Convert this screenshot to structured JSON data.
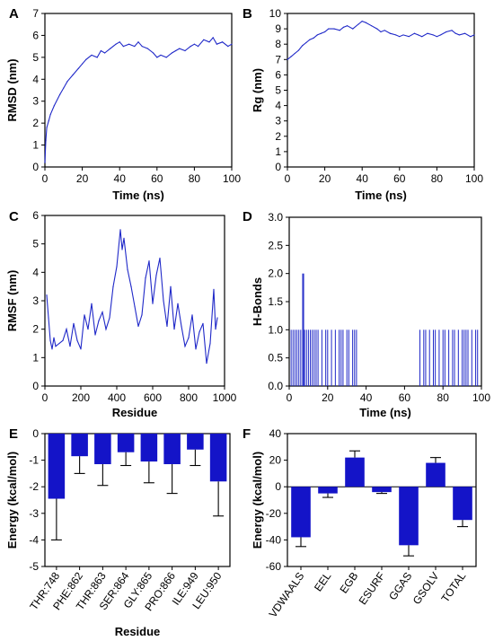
{
  "chart_data": [
    {
      "panel_label": "A",
      "type": "line",
      "xlabel": "Time (ns)",
      "ylabel": "RMSD (nm)",
      "xlim": [
        0,
        100
      ],
      "ylim": [
        0,
        7
      ],
      "xticks": [
        0,
        20,
        40,
        60,
        80,
        100
      ],
      "yticks": [
        0,
        1,
        2,
        3,
        4,
        5,
        6,
        7
      ],
      "color": "#1f28c8",
      "x": [
        0,
        0.5,
        1,
        2,
        3,
        5,
        8,
        10,
        12,
        15,
        18,
        20,
        22,
        25,
        28,
        30,
        32,
        35,
        38,
        40,
        42,
        45,
        48,
        50,
        52,
        55,
        58,
        60,
        62,
        65,
        68,
        70,
        72,
        75,
        78,
        80,
        82,
        85,
        88,
        90,
        92,
        95,
        98,
        100
      ],
      "y": [
        0.2,
        1.2,
        1.8,
        2.1,
        2.4,
        2.8,
        3.3,
        3.6,
        3.9,
        4.2,
        4.5,
        4.7,
        4.9,
        5.1,
        5.0,
        5.3,
        5.2,
        5.4,
        5.6,
        5.7,
        5.5,
        5.6,
        5.5,
        5.7,
        5.5,
        5.4,
        5.2,
        5.0,
        5.1,
        5.0,
        5.2,
        5.3,
        5.4,
        5.3,
        5.5,
        5.6,
        5.5,
        5.8,
        5.7,
        5.9,
        5.6,
        5.7,
        5.5,
        5.6
      ]
    },
    {
      "panel_label": "B",
      "type": "line",
      "xlabel": "Time (ns)",
      "ylabel": "Rg (nm)",
      "xlim": [
        0,
        100
      ],
      "ylim": [
        0,
        10
      ],
      "xticks": [
        0,
        20,
        40,
        60,
        80,
        100
      ],
      "yticks": [
        0,
        1,
        2,
        3,
        4,
        5,
        6,
        7,
        8,
        9,
        10
      ],
      "color": "#1f28c8",
      "x": [
        0,
        2,
        4,
        6,
        8,
        10,
        12,
        14,
        16,
        18,
        20,
        22,
        25,
        28,
        30,
        32,
        35,
        38,
        40,
        42,
        45,
        48,
        50,
        52,
        55,
        58,
        60,
        62,
        65,
        68,
        70,
        72,
        75,
        78,
        80,
        82,
        85,
        88,
        90,
        92,
        95,
        98,
        100
      ],
      "y": [
        7.0,
        7.2,
        7.4,
        7.6,
        7.9,
        8.1,
        8.3,
        8.4,
        8.6,
        8.7,
        8.8,
        9.0,
        9.0,
        8.9,
        9.1,
        9.2,
        9.0,
        9.3,
        9.5,
        9.4,
        9.2,
        9.0,
        8.8,
        8.9,
        8.7,
        8.6,
        8.5,
        8.6,
        8.5,
        8.7,
        8.6,
        8.5,
        8.7,
        8.6,
        8.5,
        8.6,
        8.8,
        8.9,
        8.7,
        8.6,
        8.7,
        8.5,
        8.6
      ]
    },
    {
      "panel_label": "C",
      "type": "line",
      "xlabel": "Residue",
      "ylabel": "RMSF (nm)",
      "xlim": [
        0,
        1000
      ],
      "ylim": [
        0,
        6
      ],
      "xticks": [
        0,
        200,
        400,
        600,
        800,
        1000
      ],
      "yticks": [
        0,
        1,
        2,
        3,
        4,
        5,
        6
      ],
      "color": "#1f28c8",
      "x": [
        10,
        20,
        30,
        40,
        50,
        60,
        80,
        100,
        120,
        140,
        160,
        180,
        200,
        220,
        240,
        260,
        280,
        300,
        320,
        340,
        360,
        380,
        400,
        420,
        430,
        440,
        460,
        480,
        500,
        520,
        540,
        560,
        580,
        600,
        620,
        640,
        660,
        680,
        700,
        720,
        740,
        760,
        780,
        800,
        820,
        840,
        860,
        880,
        900,
        920,
        940,
        950,
        960
      ],
      "y": [
        3.2,
        2.4,
        1.6,
        1.3,
        1.7,
        1.4,
        1.5,
        1.6,
        2.0,
        1.4,
        2.2,
        1.6,
        1.3,
        2.5,
        2.0,
        2.9,
        1.8,
        2.3,
        2.6,
        2.0,
        2.4,
        3.5,
        4.2,
        5.5,
        4.8,
        5.2,
        4.1,
        3.5,
        2.8,
        2.1,
        2.5,
        3.8,
        4.4,
        2.9,
        3.9,
        4.5,
        3.0,
        2.1,
        3.5,
        2.0,
        2.9,
        2.1,
        1.4,
        1.7,
        2.5,
        1.3,
        1.9,
        2.2,
        0.8,
        1.5,
        3.4,
        2.0,
        2.4
      ]
    },
    {
      "panel_label": "D",
      "type": "bar",
      "xlabel": "Time (ns)",
      "ylabel": "H-Bonds",
      "xlim": [
        0,
        100
      ],
      "ylim": [
        0,
        3.0
      ],
      "xticks": [
        0,
        20,
        40,
        60,
        80,
        100
      ],
      "ytick_labels": [
        "0.0",
        "0.5",
        "1.0",
        "1.5",
        "2.0",
        "2.5",
        "3.0"
      ],
      "yticks": [
        0,
        0.5,
        1.0,
        1.5,
        2.0,
        2.5,
        3.0
      ],
      "color": "#1f28c8",
      "x": [
        1,
        2,
        3,
        4,
        5,
        6,
        7,
        7.5,
        8,
        9,
        10,
        11,
        12,
        13,
        14,
        15,
        17,
        19,
        20,
        22,
        24,
        26,
        27,
        28,
        30,
        31,
        33,
        34,
        35,
        68,
        70,
        71,
        73,
        75,
        76,
        78,
        80,
        81,
        83,
        85,
        86,
        88,
        90,
        91,
        92,
        93,
        95,
        97,
        98
      ],
      "y": [
        1,
        1,
        1,
        1,
        1,
        1,
        2,
        2,
        1,
        1,
        1,
        1,
        1,
        1,
        1,
        1,
        1,
        1,
        1,
        1,
        1,
        1,
        1,
        1,
        1,
        1,
        1,
        1,
        1,
        1,
        1,
        1,
        1,
        1,
        1,
        1,
        1,
        1,
        1,
        1,
        1,
        1,
        1,
        1,
        1,
        1,
        1,
        1,
        1
      ]
    },
    {
      "panel_label": "E",
      "type": "bar",
      "xlabel": "Residue",
      "ylabel": "Energy (kcal/mol)",
      "ylim": [
        -5,
        0
      ],
      "yticks": [
        -5,
        -4,
        -3,
        -2,
        -1,
        0
      ],
      "color": "#1414c8",
      "categories": [
        "THR:748",
        "PHE:862",
        "THR:863",
        "SER:864",
        "GLY:865",
        "PRO:866",
        "ILE:949",
        "LEU:950"
      ],
      "values": [
        -2.45,
        -0.85,
        -1.15,
        -0.7,
        -1.05,
        -1.15,
        -0.6,
        -1.8
      ],
      "errors": [
        1.55,
        0.65,
        0.8,
        0.5,
        0.8,
        1.1,
        0.6,
        1.3
      ]
    },
    {
      "panel_label": "F",
      "type": "bar",
      "xlabel": "",
      "ylabel": "Energy (kcal/mol)",
      "ylim": [
        -60,
        40
      ],
      "yticks": [
        -60,
        -40,
        -20,
        0,
        20,
        40
      ],
      "color": "#1414c8",
      "categories": [
        "VDWAALS",
        "EEL",
        "EGB",
        "ESURF",
        "GGAS",
        "GSOLV",
        "TOTAL"
      ],
      "values": [
        -38,
        -5,
        22,
        -4,
        -44,
        18,
        -25
      ],
      "errors": [
        7,
        3,
        5,
        1,
        8,
        4,
        5
      ]
    }
  ]
}
